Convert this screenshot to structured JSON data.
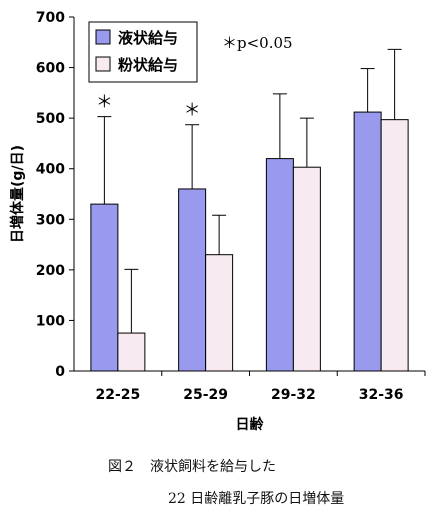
{
  "chart_data": {
    "type": "bar",
    "xlabel": "日齢",
    "ylabel": "日増体量(g/日)",
    "ylim": [
      0,
      700
    ],
    "yticks": [
      0,
      100,
      200,
      300,
      400,
      500,
      600,
      700
    ],
    "categories": [
      "22-25",
      "25-29",
      "29-32",
      "32-36"
    ],
    "series": [
      {
        "name": "液状給与",
        "color": "#9999ee",
        "values": [
          330,
          360,
          420,
          512
        ],
        "error_upper": [
          503,
          487,
          548,
          598
        ]
      },
      {
        "name": "粉状給与",
        "color": "#f7eaf0",
        "values": [
          75,
          230,
          403,
          497
        ],
        "error_upper": [
          201,
          308,
          500,
          636
        ]
      }
    ],
    "significance_marks": [
      "＊",
      "＊",
      "",
      ""
    ],
    "annotation": "＊p<0.05",
    "grid": false,
    "legend_position": "top-left"
  },
  "caption": {
    "line1": "図２　液状飼料を給与した",
    "line2": "22 日齢離乳子豚の日増体量"
  }
}
